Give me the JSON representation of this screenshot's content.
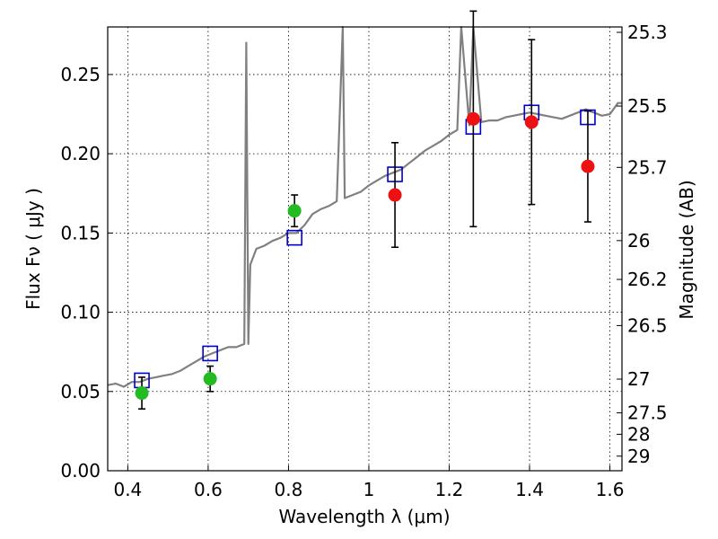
{
  "chart_data": {
    "type": "scatter",
    "title": "",
    "xlabel": "Wavelength  λ (μm)",
    "ylabel": "Flux  Fν  ( μJy )",
    "y2label": "Magnitude (AB)",
    "xlim": [
      0.35,
      1.63
    ],
    "ylim": [
      0.0,
      0.28
    ],
    "grid": true,
    "x_ticks": [
      0.4,
      0.6,
      0.8,
      1.0,
      1.2,
      1.4,
      1.6
    ],
    "x_tick_labels": [
      "0.4",
      "0.6",
      "0.8",
      "1",
      "1.2",
      "1.4",
      "1.6"
    ],
    "y_ticks": [
      0.0,
      0.05,
      0.1,
      0.15,
      0.2,
      0.25
    ],
    "y_tick_labels": [
      "0.00",
      "0.05",
      "0.10",
      "0.15",
      "0.20",
      "0.25"
    ],
    "y2_ticks": [
      {
        "label": "25.3",
        "flux": 0.2766
      },
      {
        "label": "25.5",
        "flux": 0.2301
      },
      {
        "label": "25.7",
        "flux": 0.1914
      },
      {
        "label": "26",
        "flux": 0.1452
      },
      {
        "label": "26.2",
        "flux": 0.1207
      },
      {
        "label": "26.5",
        "flux": 0.0916
      },
      {
        "label": "27",
        "flux": 0.0578
      },
      {
        "label": "27.5",
        "flux": 0.0365
      },
      {
        "label": "28",
        "flux": 0.023
      },
      {
        "label": "29",
        "flux": 0.0092
      }
    ],
    "series": [
      {
        "kind": "spectrum",
        "color": "#808080",
        "points": [
          [
            0.35,
            0.054
          ],
          [
            0.37,
            0.055
          ],
          [
            0.39,
            0.053
          ],
          [
            0.41,
            0.056
          ],
          [
            0.43,
            0.056
          ],
          [
            0.45,
            0.058
          ],
          [
            0.47,
            0.059
          ],
          [
            0.49,
            0.06
          ],
          [
            0.51,
            0.061
          ],
          [
            0.53,
            0.063
          ],
          [
            0.55,
            0.066
          ],
          [
            0.57,
            0.069
          ],
          [
            0.59,
            0.072
          ],
          [
            0.61,
            0.074
          ],
          [
            0.63,
            0.076
          ],
          [
            0.65,
            0.078
          ],
          [
            0.67,
            0.078
          ],
          [
            0.69,
            0.08
          ],
          [
            0.695,
            0.27
          ],
          [
            0.7,
            0.08
          ],
          [
            0.705,
            0.13
          ],
          [
            0.72,
            0.14
          ],
          [
            0.74,
            0.142
          ],
          [
            0.76,
            0.145
          ],
          [
            0.78,
            0.147
          ],
          [
            0.8,
            0.15
          ],
          [
            0.82,
            0.15
          ],
          [
            0.84,
            0.155
          ],
          [
            0.86,
            0.162
          ],
          [
            0.88,
            0.165
          ],
          [
            0.9,
            0.167
          ],
          [
            0.92,
            0.17
          ],
          [
            0.935,
            0.28
          ],
          [
            0.94,
            0.172
          ],
          [
            0.96,
            0.174
          ],
          [
            0.98,
            0.176
          ],
          [
            1.0,
            0.18
          ],
          [
            1.02,
            0.183
          ],
          [
            1.04,
            0.186
          ],
          [
            1.06,
            0.188
          ],
          [
            1.08,
            0.19
          ],
          [
            1.1,
            0.194
          ],
          [
            1.12,
            0.198
          ],
          [
            1.14,
            0.202
          ],
          [
            1.16,
            0.205
          ],
          [
            1.18,
            0.208
          ],
          [
            1.2,
            0.212
          ],
          [
            1.22,
            0.215
          ],
          [
            1.23,
            0.28
          ],
          [
            1.25,
            0.218
          ],
          [
            1.26,
            0.28
          ],
          [
            1.28,
            0.22
          ],
          [
            1.3,
            0.221
          ],
          [
            1.32,
            0.221
          ],
          [
            1.34,
            0.223
          ],
          [
            1.36,
            0.224
          ],
          [
            1.38,
            0.225
          ],
          [
            1.4,
            0.226
          ],
          [
            1.42,
            0.225
          ],
          [
            1.44,
            0.224
          ],
          [
            1.46,
            0.223
          ],
          [
            1.48,
            0.222
          ],
          [
            1.5,
            0.224
          ],
          [
            1.52,
            0.226
          ],
          [
            1.54,
            0.228
          ],
          [
            1.56,
            0.226
          ],
          [
            1.58,
            0.224
          ],
          [
            1.6,
            0.225
          ],
          [
            1.62,
            0.232
          ],
          [
            1.63,
            0.232
          ]
        ]
      },
      {
        "kind": "model-squares",
        "color": "#0000cc",
        "points": [
          [
            0.435,
            0.057
          ],
          [
            0.605,
            0.074
          ],
          [
            0.815,
            0.147
          ],
          [
            1.065,
            0.187
          ],
          [
            1.26,
            0.217
          ],
          [
            1.405,
            0.226
          ],
          [
            1.545,
            0.223
          ]
        ]
      },
      {
        "kind": "green-points",
        "color": "#22bb22",
        "points": [
          {
            "x": 0.435,
            "y": 0.049,
            "err": 0.01
          },
          {
            "x": 0.605,
            "y": 0.058,
            "err": 0.008
          },
          {
            "x": 0.815,
            "y": 0.164,
            "err": 0.01
          }
        ]
      },
      {
        "kind": "red-points",
        "color": "#ee1111",
        "points": [
          {
            "x": 1.065,
            "y": 0.174,
            "err": 0.033
          },
          {
            "x": 1.26,
            "y": 0.222,
            "err": 0.068
          },
          {
            "x": 1.405,
            "y": 0.22,
            "err": 0.052
          },
          {
            "x": 1.545,
            "y": 0.192,
            "err": 0.035
          }
        ]
      }
    ]
  }
}
